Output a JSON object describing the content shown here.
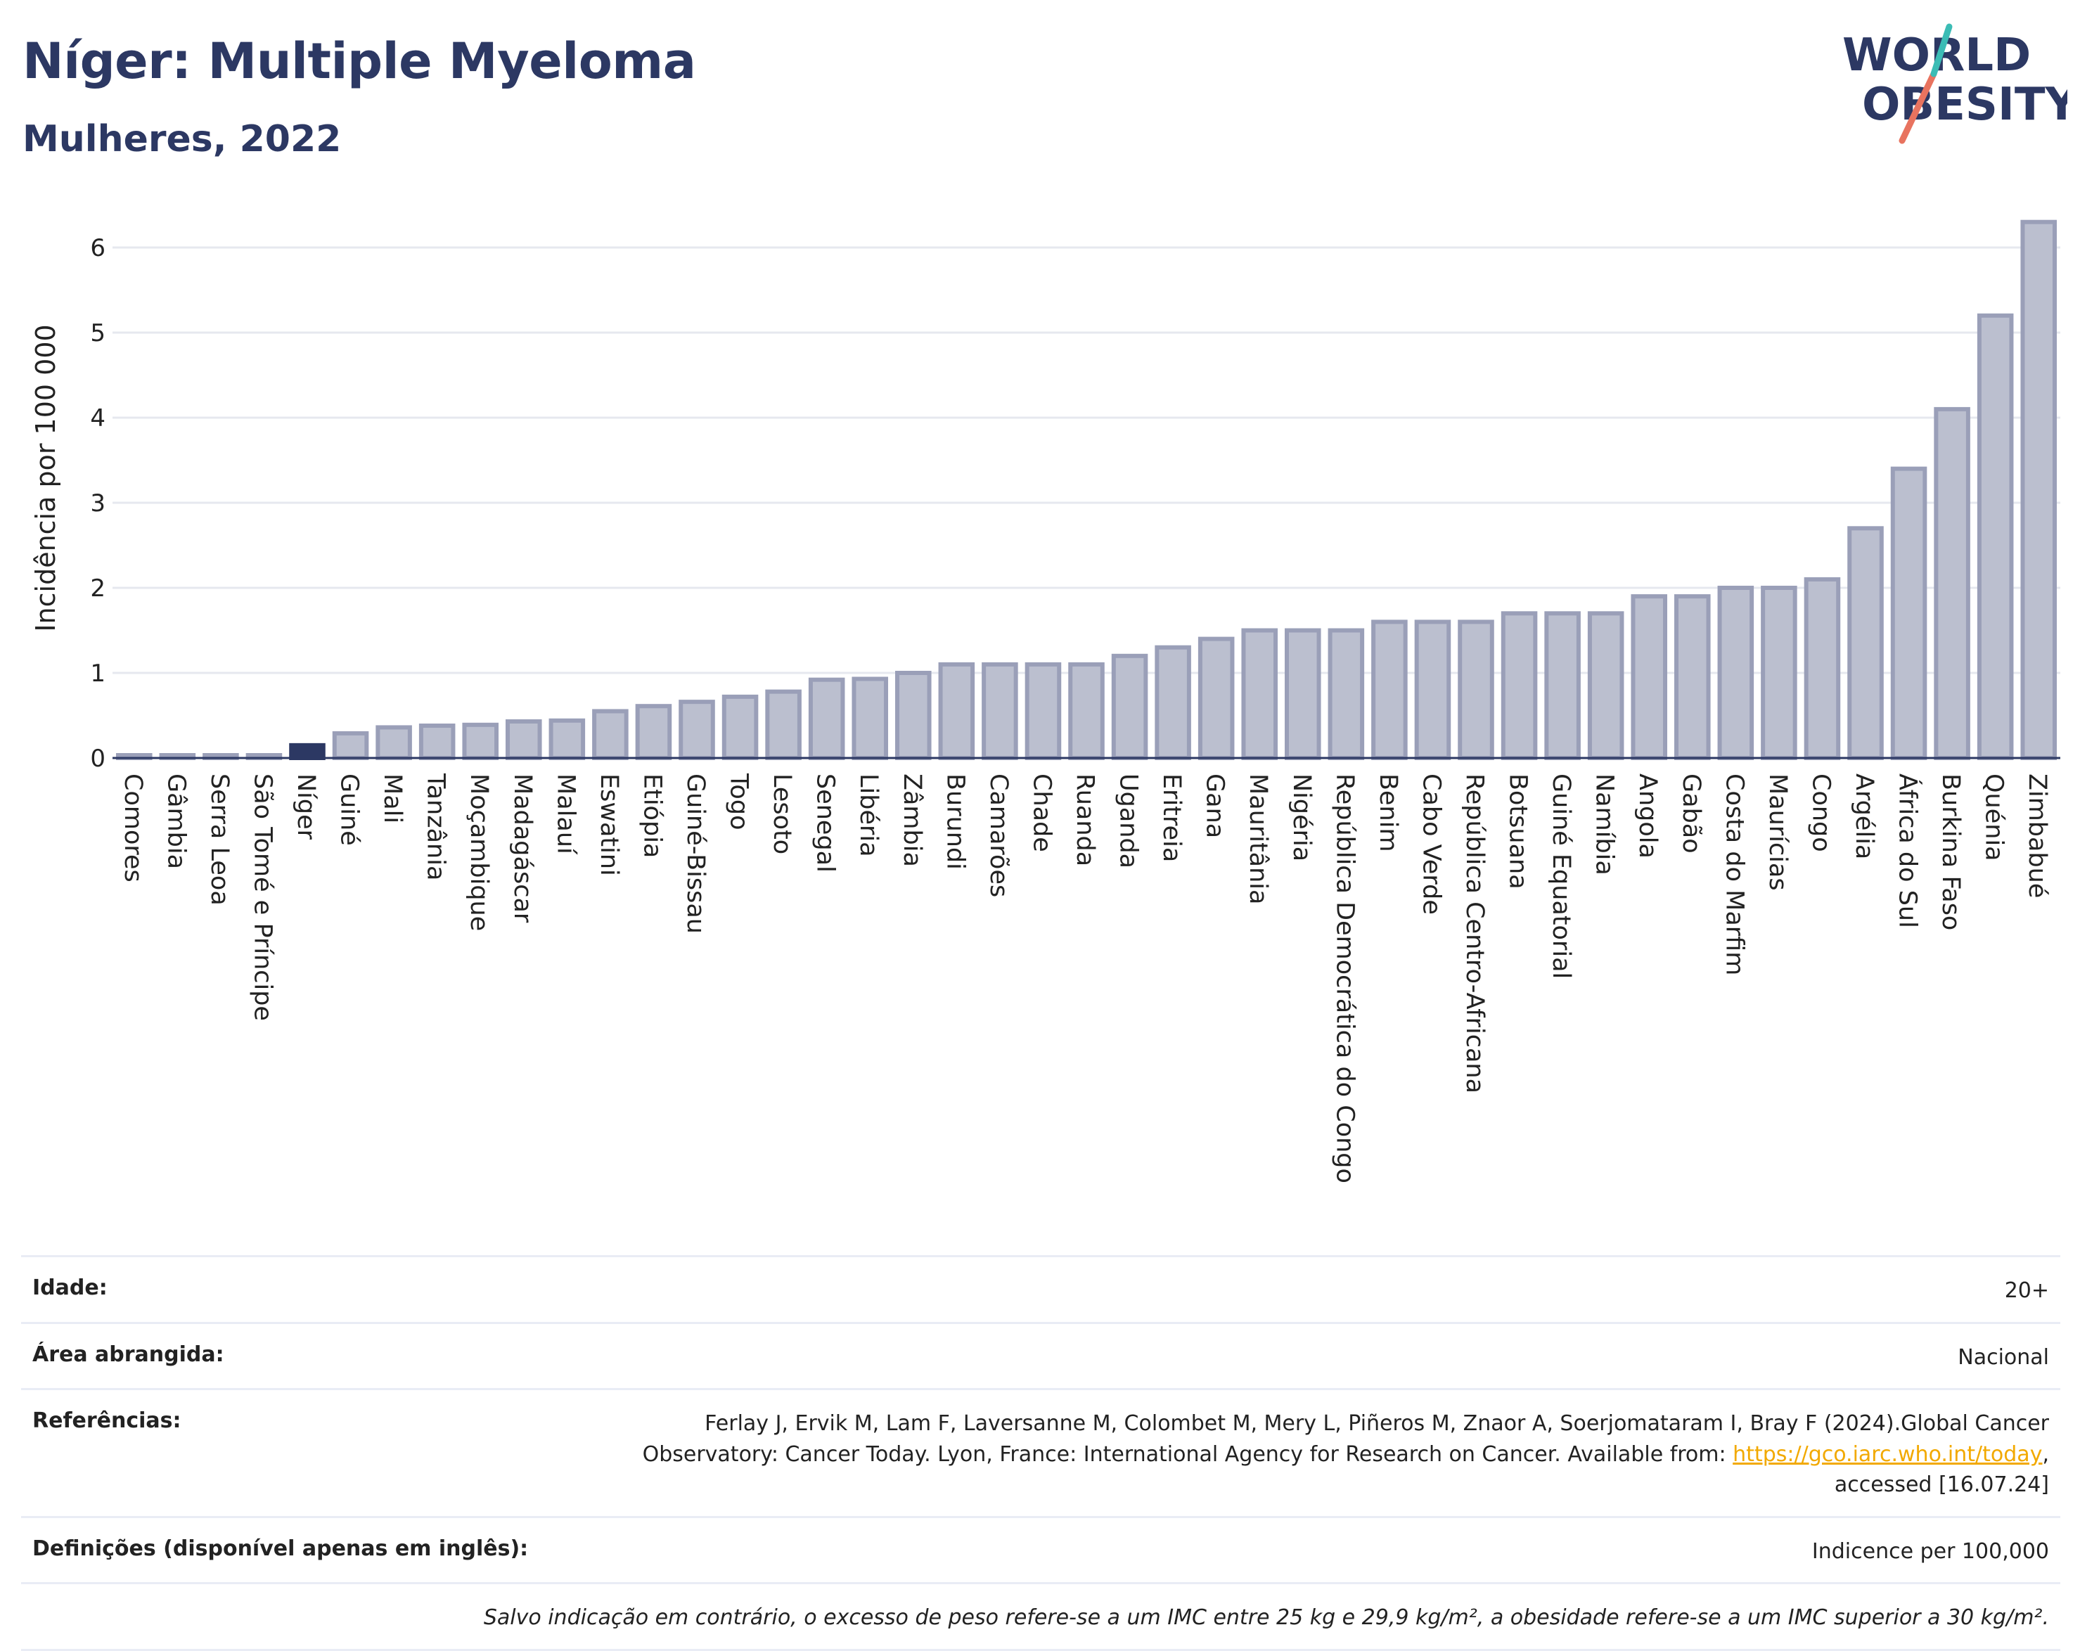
{
  "header": {
    "title": "Níger: Multiple Myeloma",
    "subtitle": "Mulheres, 2022"
  },
  "logo": {
    "line1": "WORLD",
    "line2": "OBESITY"
  },
  "colors": {
    "title": "#2c3863",
    "bar": "#bbbfcf",
    "bar_stroke": "#9a9fb8",
    "highlight": "#2c3863",
    "grid": "#e6e8ef"
  },
  "chart_data": {
    "type": "bar",
    "ylabel": "Incidência por 100 000",
    "ylim": [
      0,
      6.5
    ],
    "yticks": [
      0,
      1,
      2,
      3,
      4,
      5,
      6
    ],
    "grid": true,
    "highlight": "Níger",
    "categories": [
      "Comores",
      "Gâmbia",
      "Serra Leoa",
      "São Tomé e Príncipe",
      "Níger",
      "Guiné",
      "Mali",
      "Tanzânia",
      "Moçambique",
      "Madagáscar",
      "Malauí",
      "Eswatini",
      "Etiópia",
      "Guiné-Bissau",
      "Togo",
      "Lesoto",
      "Senegal",
      "Libéria",
      "Zâmbia",
      "Burundi",
      "Camarões",
      "Chade",
      "Ruanda",
      "Uganda",
      "Eritreia",
      "Gana",
      "Mauritânia",
      "Nigéria",
      "República Democrática do Congo",
      "Benim",
      "Cabo Verde",
      "República Centro-Africana",
      "Botsuana",
      "Guiné Equatorial",
      "Namíbia",
      "Angola",
      "Gabão",
      "Costa do Marfim",
      "Maurícias",
      "Congo",
      "Argélia",
      "África do Sul",
      "Burkina Faso",
      "Quénia",
      "Zimbabué"
    ],
    "values": [
      0.02,
      0.02,
      0.02,
      0.02,
      0.15,
      0.29,
      0.36,
      0.38,
      0.39,
      0.43,
      0.44,
      0.55,
      0.61,
      0.66,
      0.72,
      0.78,
      0.92,
      0.93,
      1.0,
      1.1,
      1.1,
      1.1,
      1.1,
      1.2,
      1.3,
      1.4,
      1.5,
      1.5,
      1.5,
      1.6,
      1.6,
      1.6,
      1.7,
      1.7,
      1.7,
      1.9,
      1.9,
      2.0,
      2.0,
      2.1,
      2.7,
      3.4,
      4.1,
      5.2,
      6.3
    ]
  },
  "info": {
    "age_label": "Idade:",
    "age_value": "20+",
    "area_label": "Área abrangida:",
    "area_value": "Nacional",
    "refs_label": "Referências:",
    "refs_line1": "Ferlay J, Ervik M, Lam F, Laversanne M, Colombet M, Mery L, Piñeros M, Znaor A, Soerjomataram I, Bray F (2024).Global Cancer",
    "refs_line2_pre": "Observatory: Cancer Today. Lyon, France: International Agency for Research on Cancer. Available from: ",
    "refs_link": "https://gco.iarc.who.int/today",
    "refs_line2_post": ",",
    "refs_line3": "accessed [16.07.24]",
    "defs_label": "Definições (disponível apenas em inglês):",
    "defs_value": "Indicence per 100,000",
    "note": "Salvo indicação em contrário, o excesso de peso refere-se a um IMC entre 25 kg e 29,9 kg/m², a obesidade refere-se a um IMC superior a 30 kg/m²."
  }
}
